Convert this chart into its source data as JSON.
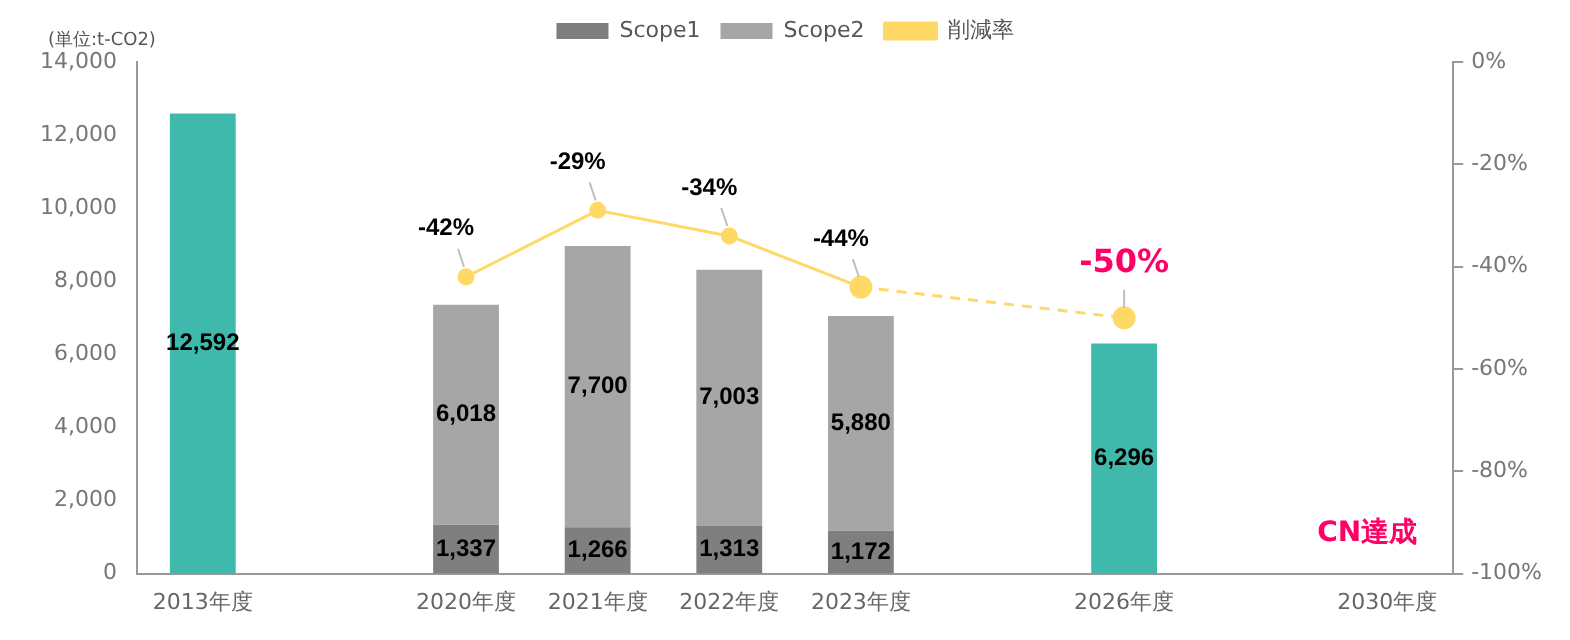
{
  "chart_data": {
    "type": "bar",
    "stacked": true,
    "legend": "top",
    "annotations": [
      "(単位:t-CO2)",
      "CN達成"
    ],
    "categories": [
      "2013年度",
      null,
      "2020年度",
      "2021年度",
      "2022年度",
      "2023年度",
      null,
      "2026年度",
      null,
      "2030年度"
    ],
    "series": [
      {
        "color": "#40b9ad",
        "values": [
          12592,
          null,
          null,
          null,
          null,
          null,
          null,
          6296,
          null,
          null
        ],
        "value_labels": [
          "12,592",
          null,
          null,
          null,
          null,
          null,
          null,
          "6,296",
          null,
          null
        ]
      },
      {
        "name": "Scope1",
        "color": "#7f7f7f",
        "values": [
          null,
          null,
          1337,
          1266,
          1313,
          1172,
          null,
          null,
          null,
          null
        ],
        "value_labels": [
          null,
          null,
          "1,337",
          "1,266",
          "1,313",
          "1,172",
          null,
          null,
          null,
          null
        ]
      },
      {
        "name": "Scope2",
        "color": "#a6a6a6",
        "values": [
          null,
          null,
          6018,
          7700,
          7003,
          5880,
          null,
          null,
          null,
          null
        ],
        "value_labels": [
          null,
          null,
          "6,018",
          "7,700",
          "7,003",
          "5,880",
          null,
          null,
          null,
          null
        ]
      },
      {
        "name": "削減率",
        "type": "line",
        "axis": "y2",
        "color": "#ffd966",
        "marker": "circle",
        "line_style": "solid",
        "values": [
          null,
          null,
          -42,
          -29,
          -34,
          -44,
          null,
          null,
          null,
          null
        ],
        "value_labels": [
          null,
          null,
          "-42%",
          "-29%",
          "-34%",
          "-44%",
          null,
          null,
          null,
          null
        ]
      },
      {
        "type": "line",
        "axis": "y2",
        "color": "#ffd966",
        "marker": "circle",
        "line_style": "dashed",
        "values": [
          null,
          null,
          null,
          null,
          null,
          -44,
          null,
          -50,
          null,
          null
        ],
        "value_labels": [
          null,
          null,
          null,
          null,
          null,
          null,
          null,
          "-50%",
          null,
          null
        ]
      }
    ],
    "ylim": [
      0,
      14000
    ],
    "yticks": [
      {
        "value": 0,
        "label": "0"
      },
      {
        "value": 2000,
        "label": "2,000"
      },
      {
        "value": 4000,
        "label": "4,000"
      },
      {
        "value": 6000,
        "label": "6,000"
      },
      {
        "value": 8000,
        "label": "8,000"
      },
      {
        "value": 10000,
        "label": "10,000"
      },
      {
        "value": 12000,
        "label": "12,000"
      },
      {
        "value": 14000,
        "label": "14,000"
      }
    ],
    "y2lim": [
      -100,
      0
    ],
    "y2ticks": [
      {
        "value": 0,
        "label": "0%"
      },
      {
        "value": -20,
        "label": "-20%"
      },
      {
        "value": -40,
        "label": "-40%"
      },
      {
        "value": -60,
        "label": "-60%"
      },
      {
        "value": -80,
        "label": "-80%"
      },
      {
        "value": -100,
        "label": "-100%"
      }
    ]
  }
}
